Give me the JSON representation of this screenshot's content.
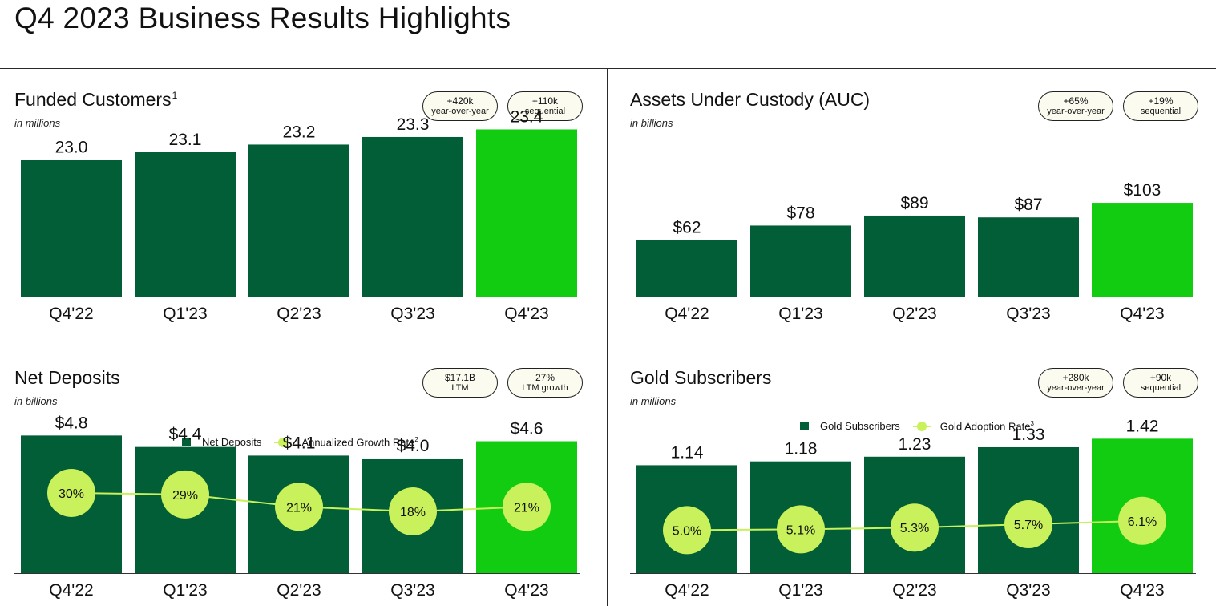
{
  "page": {
    "title": "Q4 2023 Business Results Highlights"
  },
  "colors": {
    "bar_dark": "#025e36",
    "bar_highlight": "#12cc12",
    "line_accent": "#c8f15b",
    "pill_bg": "#fbfbef"
  },
  "panels": {
    "funded": {
      "title": "Funded Customers",
      "footnote": "1",
      "unit": "in millions",
      "pills": [
        {
          "value": "+420k",
          "label": "year-over-year"
        },
        {
          "value": "+110k",
          "label": "sequential"
        }
      ]
    },
    "auc": {
      "title": "Assets Under Custody (AUC)",
      "unit": "in billions",
      "pills": [
        {
          "value": "+65%",
          "label": "year-over-year"
        },
        {
          "value": "+19%",
          "label": "sequential"
        }
      ]
    },
    "deposits": {
      "title": "Net Deposits",
      "unit": "in billions",
      "pills": [
        {
          "value": "$17.1B",
          "label": "LTM"
        },
        {
          "value": "27%",
          "label": "LTM growth"
        }
      ],
      "legend": {
        "bar": "Net Deposits",
        "line": "Annualized Growth Rate",
        "line_footnote": "2"
      }
    },
    "gold": {
      "title": "Gold Subscribers",
      "unit": "in millions",
      "pills": [
        {
          "value": "+280k",
          "label": "year-over-year"
        },
        {
          "value": "+90k",
          "label": "sequential"
        }
      ],
      "legend": {
        "bar": "Gold Subscribers",
        "line": "Gold Adoption Rate",
        "line_footnote": "3"
      }
    }
  },
  "chart_data": [
    {
      "id": "funded",
      "type": "bar",
      "title": "Funded Customers",
      "ylabel": "in millions",
      "categories": [
        "Q4'22",
        "Q1'23",
        "Q2'23",
        "Q3'23",
        "Q4'23"
      ],
      "series": [
        {
          "name": "Funded Customers",
          "values": [
            23.0,
            23.1,
            23.2,
            23.3,
            23.4
          ]
        }
      ],
      "labels": [
        "23.0",
        "23.1",
        "23.2",
        "23.3",
        "23.4"
      ],
      "ylim": [
        21.2,
        23.5
      ]
    },
    {
      "id": "auc",
      "type": "bar",
      "title": "Assets Under Custody (AUC)",
      "ylabel": "in billions",
      "categories": [
        "Q4'22",
        "Q1'23",
        "Q2'23",
        "Q3'23",
        "Q4'23"
      ],
      "series": [
        {
          "name": "AUC",
          "values": [
            62,
            78,
            89,
            87,
            103
          ]
        }
      ],
      "labels": [
        "$62",
        "$78",
        "$89",
        "$87",
        "$103"
      ],
      "ylim": [
        0,
        192
      ]
    },
    {
      "id": "deposits",
      "type": "bar",
      "title": "Net Deposits",
      "ylabel": "in billions",
      "categories": [
        "Q4'22",
        "Q1'23",
        "Q2'23",
        "Q3'23",
        "Q4'23"
      ],
      "series": [
        {
          "name": "Net Deposits",
          "values": [
            4.8,
            4.4,
            4.1,
            4.0,
            4.6
          ]
        },
        {
          "name": "Annualized Growth Rate",
          "type": "line",
          "values": [
            30,
            29,
            21,
            18,
            21
          ]
        }
      ],
      "labels": [
        "$4.8",
        "$4.4",
        "$4.1",
        "$4.0",
        "$4.6"
      ],
      "line_labels": [
        "30%",
        "29%",
        "21%",
        "18%",
        "21%"
      ],
      "ylim": [
        0,
        4.95
      ],
      "line_ylim": [
        -22,
        70
      ]
    },
    {
      "id": "gold",
      "type": "bar",
      "title": "Gold Subscribers",
      "ylabel": "in millions",
      "categories": [
        "Q4'22",
        "Q1'23",
        "Q2'23",
        "Q3'23",
        "Q4'23"
      ],
      "series": [
        {
          "name": "Gold Subscribers",
          "values": [
            1.14,
            1.18,
            1.23,
            1.33,
            1.42
          ]
        },
        {
          "name": "Gold Adoption Rate",
          "type": "line",
          "values": [
            5.0,
            5.1,
            5.3,
            5.7,
            6.1
          ]
        }
      ],
      "labels": [
        "1.14",
        "1.18",
        "1.23",
        "1.33",
        "1.42"
      ],
      "line_labels": [
        "5.0%",
        "5.1%",
        "5.3%",
        "5.7%",
        "6.1%"
      ],
      "ylim": [
        0,
        1.55
      ],
      "line_ylim": [
        -0.05,
        17.2
      ]
    }
  ]
}
